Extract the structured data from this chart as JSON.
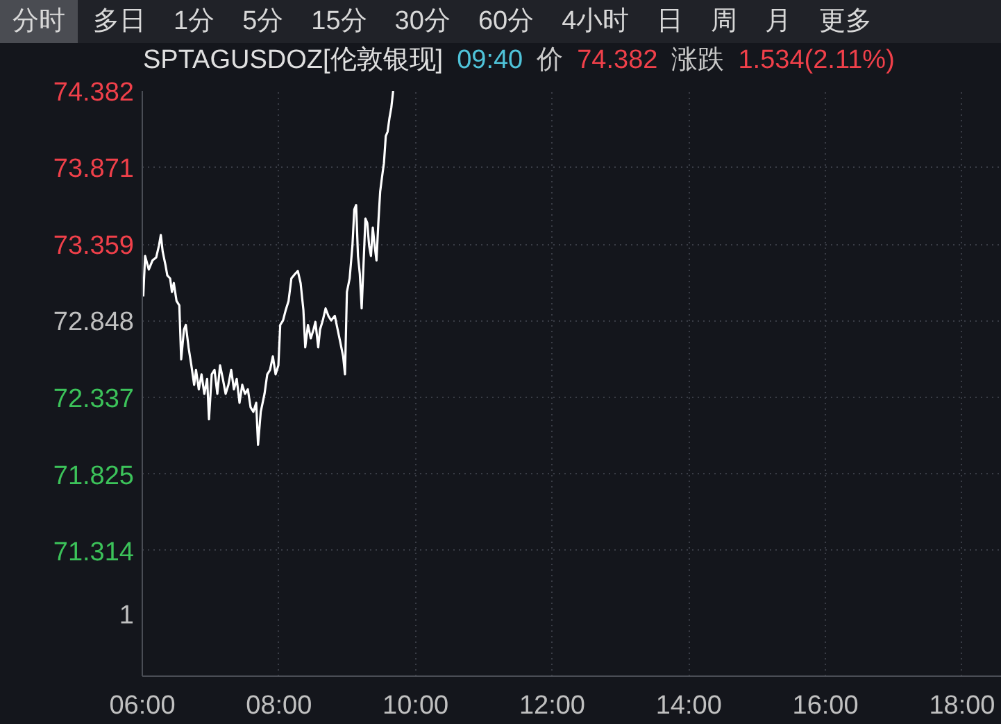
{
  "chart_data": {
    "type": "line",
    "title": "SPTAGUSDOZ[伦敦银现]",
    "annotations": [
      "分时",
      "多日",
      "1分",
      "5分",
      "15分",
      "30分",
      "60分",
      "4小时",
      "日",
      "周",
      "月",
      "更多",
      "09:40",
      "价",
      "74.382",
      "涨跌",
      "1.534(2.11%)",
      "1"
    ],
    "x": [
      6.014,
      6.041,
      6.095,
      6.149,
      6.203,
      6.244,
      6.271,
      6.298,
      6.339,
      6.366,
      6.407,
      6.434,
      6.461,
      6.501,
      6.542,
      6.569,
      6.61,
      6.637,
      6.677,
      6.718,
      6.759,
      6.786,
      6.827,
      6.867,
      6.908,
      6.949,
      6.976,
      7.016,
      7.057,
      7.098,
      7.138,
      7.179,
      7.22,
      7.26,
      7.301,
      7.341,
      7.382,
      7.423,
      7.463,
      7.504,
      7.545,
      7.585,
      7.626,
      7.667,
      7.694,
      7.734,
      7.789,
      7.829,
      7.87,
      7.911,
      7.951,
      7.992,
      8.019,
      8.06,
      8.1,
      8.141,
      8.182,
      8.236,
      8.276,
      8.317,
      8.358,
      8.385,
      8.425,
      8.466,
      8.507,
      8.534,
      8.575,
      8.602,
      8.642,
      8.683,
      8.724,
      8.764,
      8.818,
      8.859,
      8.9,
      8.94,
      8.967,
      8.995,
      9.035,
      9.076,
      9.103,
      9.13,
      9.157,
      9.184,
      9.211,
      9.238,
      9.266,
      9.293,
      9.32,
      9.347,
      9.374,
      9.401,
      9.428,
      9.455,
      9.482,
      9.51,
      9.537,
      9.564,
      9.591,
      9.618,
      9.645,
      9.672
    ],
    "series": [
      {
        "color": "#ffffff",
        "values": [
          73.01,
          73.28,
          73.19,
          73.25,
          73.27,
          73.35,
          73.42,
          73.31,
          73.22,
          73.15,
          73.13,
          73.04,
          73.1,
          72.98,
          72.95,
          72.59,
          72.79,
          72.82,
          72.67,
          72.55,
          72.42,
          72.52,
          72.39,
          72.49,
          72.36,
          72.46,
          72.19,
          72.49,
          72.52,
          72.36,
          72.55,
          72.46,
          72.36,
          72.42,
          72.52,
          72.39,
          72.46,
          72.3,
          72.42,
          72.36,
          72.39,
          72.27,
          72.24,
          72.3,
          72.02,
          72.24,
          72.36,
          72.49,
          72.52,
          72.61,
          72.49,
          72.55,
          72.82,
          72.85,
          72.92,
          72.98,
          73.13,
          73.16,
          73.18,
          73.1,
          72.92,
          72.67,
          72.82,
          72.73,
          72.79,
          72.84,
          72.67,
          72.79,
          72.85,
          72.93,
          72.88,
          72.85,
          72.88,
          72.79,
          72.7,
          72.61,
          72.49,
          73.04,
          73.13,
          73.35,
          73.59,
          73.62,
          73.28,
          73.16,
          72.93,
          73.22,
          73.53,
          73.5,
          73.35,
          73.28,
          73.47,
          73.35,
          73.25,
          73.5,
          73.71,
          73.81,
          73.9,
          74.08,
          74.11,
          74.2,
          74.27,
          74.382
        ]
      }
    ],
    "xlim": [
      6,
      18.58
    ],
    "xticks": [
      {
        "value": 6,
        "label": "06:00"
      },
      {
        "value": 8,
        "label": "08:00"
      },
      {
        "value": 10,
        "label": "10:00"
      },
      {
        "value": 12,
        "label": "12:00"
      },
      {
        "value": 14,
        "label": "14:00"
      },
      {
        "value": 16,
        "label": "16:00"
      },
      {
        "value": 18,
        "label": "18:00"
      }
    ],
    "ylim": [
      70.476,
      74.382
    ],
    "yticks": [
      74.382,
      73.871,
      73.359,
      72.848,
      72.337,
      71.825,
      71.314
    ],
    "grid": true,
    "marker": "none",
    "line_style": "solid"
  }
}
